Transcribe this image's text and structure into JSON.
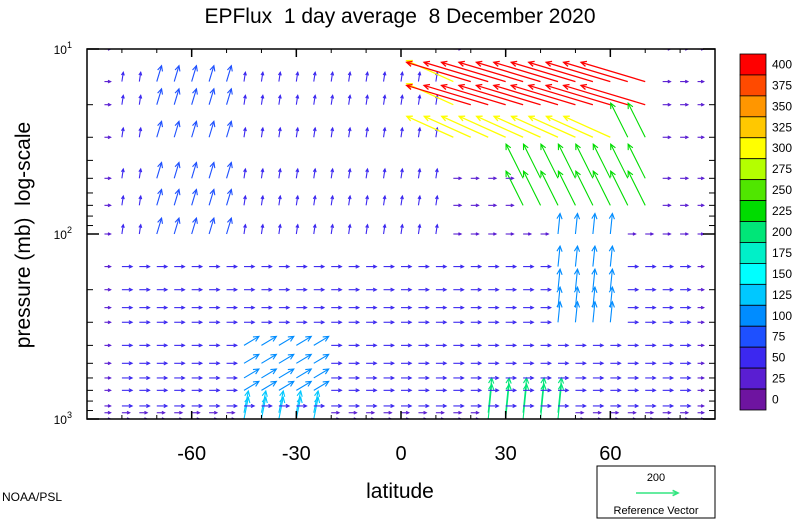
{
  "chart_data": {
    "type": "vector-field",
    "title": "EPFlux  1 day average  8 December 2020",
    "xlabel": "latitude",
    "ylabel": "pressure (mb)  log-scale",
    "x_range": [
      -90,
      90
    ],
    "x_ticks": [
      -60,
      -30,
      0,
      30,
      60
    ],
    "x_tick_labels": [
      "-60",
      "-30",
      "0",
      "30",
      "60"
    ],
    "y_range": [
      1000,
      10
    ],
    "y_scale": "log",
    "y_ticks": [
      {
        "base": "10",
        "exp": "1",
        "value": 10
      },
      {
        "base": "10",
        "exp": "2",
        "value": 100
      },
      {
        "base": "10",
        "exp": "3",
        "value": 1000
      }
    ],
    "colorbar": {
      "labels": [
        "400",
        "375",
        "350",
        "325",
        "300",
        "275",
        "250",
        "225",
        "200",
        "175",
        "150",
        "125",
        "100",
        "75",
        "50",
        "25",
        "0"
      ],
      "colors": [
        "#ff0000",
        "#ff4a00",
        "#ff9600",
        "#ffc800",
        "#ffff00",
        "#b4ff00",
        "#50e600",
        "#00dc00",
        "#00e678",
        "#00f0c8",
        "#00ffff",
        "#00c8ff",
        "#008cff",
        "#1e50ff",
        "#3c28f0",
        "#5a1ed2",
        "#6e14a0"
      ]
    },
    "reference_vector": {
      "magnitude": "200",
      "label": "Reference Vector",
      "color": "#32e680"
    },
    "arrow_groups": [
      {
        "lat_range": [
          -80,
          80
        ],
        "p_range": [
          150,
          900
        ],
        "u": 1,
        "v": 0,
        "mag": 45
      },
      {
        "lat_range": [
          -80,
          10
        ],
        "p_range": [
          10,
          140
        ],
        "u": 0.15,
        "v": 1,
        "mag": 40
      },
      {
        "lat_range": [
          -70,
          -50
        ],
        "p_range": [
          15,
          130
        ],
        "u": 0.3,
        "v": 1,
        "mag": 85
      },
      {
        "lat_range": [
          -45,
          -25
        ],
        "p_range": [
          400,
          700
        ],
        "u": 1,
        "v": 0.6,
        "mag": 90
      },
      {
        "lat_range": [
          -45,
          -25
        ],
        "p_range": [
          900,
          1000
        ],
        "u": 0.2,
        "v": 1,
        "mag": 120
      },
      {
        "lat_range": [
          45,
          60
        ],
        "p_range": [
          100,
          300
        ],
        "u": 0.1,
        "v": 1,
        "mag": 110
      },
      {
        "lat_range": [
          25,
          45
        ],
        "p_range": [
          900,
          1000
        ],
        "u": 0.1,
        "v": 1,
        "mag": 200
      },
      {
        "lat_range": [
          35,
          70
        ],
        "p_range": [
          25,
          80
        ],
        "u": -0.5,
        "v": 1,
        "mag": 220
      },
      {
        "lat_range": [
          15,
          60
        ],
        "p_range": [
          14,
          30
        ],
        "u": -1,
        "v": 0.45,
        "mag": 300
      },
      {
        "lat_range": [
          20,
          70
        ],
        "p_range": [
          10,
          22
        ],
        "u": -1,
        "v": 0.3,
        "mag": 400
      }
    ]
  },
  "footer": {
    "credit": "NOAA/PSL"
  }
}
